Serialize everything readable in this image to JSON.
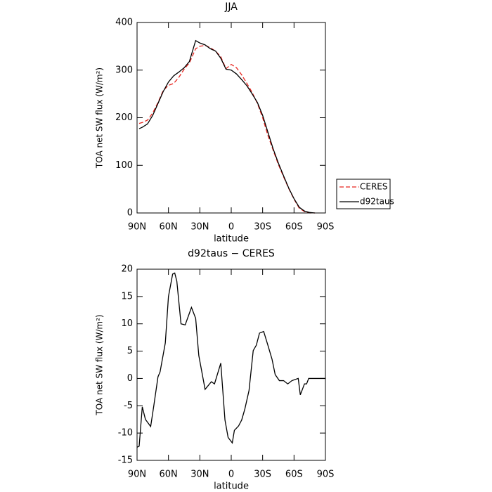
{
  "chart_data": [
    {
      "type": "line",
      "title": "JJA",
      "x_label": "latitude",
      "y_label": "TOA net SW flux (W/m²)",
      "x": [
        88,
        85,
        80,
        75,
        70,
        65,
        60,
        55,
        50,
        45,
        40,
        34,
        30,
        25,
        20,
        15,
        10,
        5,
        0,
        -5,
        -10,
        -15,
        -20,
        -25,
        -30,
        -35,
        -40,
        -45,
        -50,
        -55,
        -60,
        -65,
        -70,
        -75,
        -80
      ],
      "series": [
        {
          "name": "CERES",
          "color": "#e8251f",
          "style": "dashed",
          "values": [
            188,
            190,
            195,
            210,
            232,
            257,
            268,
            272,
            285,
            302,
            315,
            345,
            350,
            352,
            347,
            340,
            328,
            303,
            312,
            305,
            290,
            272,
            253,
            230,
            200,
            163,
            132,
            102,
            76,
            51,
            29,
            10,
            3,
            0,
            0
          ]
        },
        {
          "name": "d92taus",
          "color": "#000000",
          "style": "solid",
          "values": [
            177,
            180,
            187,
            205,
            230,
            255,
            275,
            288,
            296,
            305,
            318,
            362,
            357,
            353,
            345,
            340,
            325,
            302,
            300,
            292,
            280,
            267,
            250,
            232,
            205,
            170,
            135,
            105,
            78,
            52,
            30,
            12,
            4,
            1,
            0
          ]
        }
      ],
      "xlim": [
        90,
        -90
      ],
      "xticks": [
        {
          "value": 90,
          "label": "90N"
        },
        {
          "value": 60,
          "label": "60N"
        },
        {
          "value": 30,
          "label": "30N"
        },
        0,
        {
          "value": -30,
          "label": "30S"
        },
        {
          "value": -60,
          "label": "60S"
        },
        {
          "value": -90,
          "label": "90S"
        }
      ],
      "ylim": [
        0,
        400
      ],
      "yticks": [
        0,
        100,
        200,
        300,
        400
      ],
      "legend_position": "right"
    },
    {
      "type": "line",
      "title": "d92taus − CERES",
      "x_label": "latitude",
      "y_label": "TOA net SW flux (W/m²)",
      "x": [
        90,
        88,
        85,
        82,
        77,
        74,
        70,
        68,
        63,
        60,
        56,
        54,
        52,
        48,
        44,
        38,
        34,
        31,
        25,
        19,
        16,
        10,
        6,
        3,
        -1,
        -3,
        -7,
        -10,
        -13,
        -17,
        -21,
        -24,
        -27,
        -31,
        -35,
        -39,
        -42,
        -46,
        -50,
        -54,
        -58,
        -64,
        -66,
        -70,
        -72,
        -74,
        -90
      ],
      "values": [
        -12.6,
        -12.4,
        -5.2,
        -7.5,
        -8.8,
        -5,
        0.3,
        1.2,
        6.5,
        15,
        19.1,
        19.3,
        17.8,
        10,
        9.8,
        13,
        11,
        4.2,
        -2,
        -0.6,
        -1,
        2.8,
        -7.6,
        -10.8,
        -11.8,
        -9.5,
        -8.7,
        -7.6,
        -5.6,
        -2.2,
        5.1,
        6.1,
        8.3,
        8.6,
        6.1,
        3.5,
        0.7,
        -0.4,
        -0.4,
        -1,
        -0.4,
        0,
        -3,
        -1,
        -1,
        0,
        0
      ],
      "color": "#000000",
      "xlim": [
        90,
        -90
      ],
      "xticks": [
        {
          "value": 90,
          "label": "90N"
        },
        {
          "value": 60,
          "label": "60N"
        },
        {
          "value": 30,
          "label": "30N"
        },
        0,
        {
          "value": -30,
          "label": "30S"
        },
        {
          "value": -60,
          "label": "60S"
        },
        {
          "value": -90,
          "label": "90S"
        }
      ],
      "ylim": [
        -15,
        20
      ],
      "yticks": [
        -15,
        -10,
        -5,
        0,
        5,
        10,
        15,
        20
      ]
    }
  ]
}
